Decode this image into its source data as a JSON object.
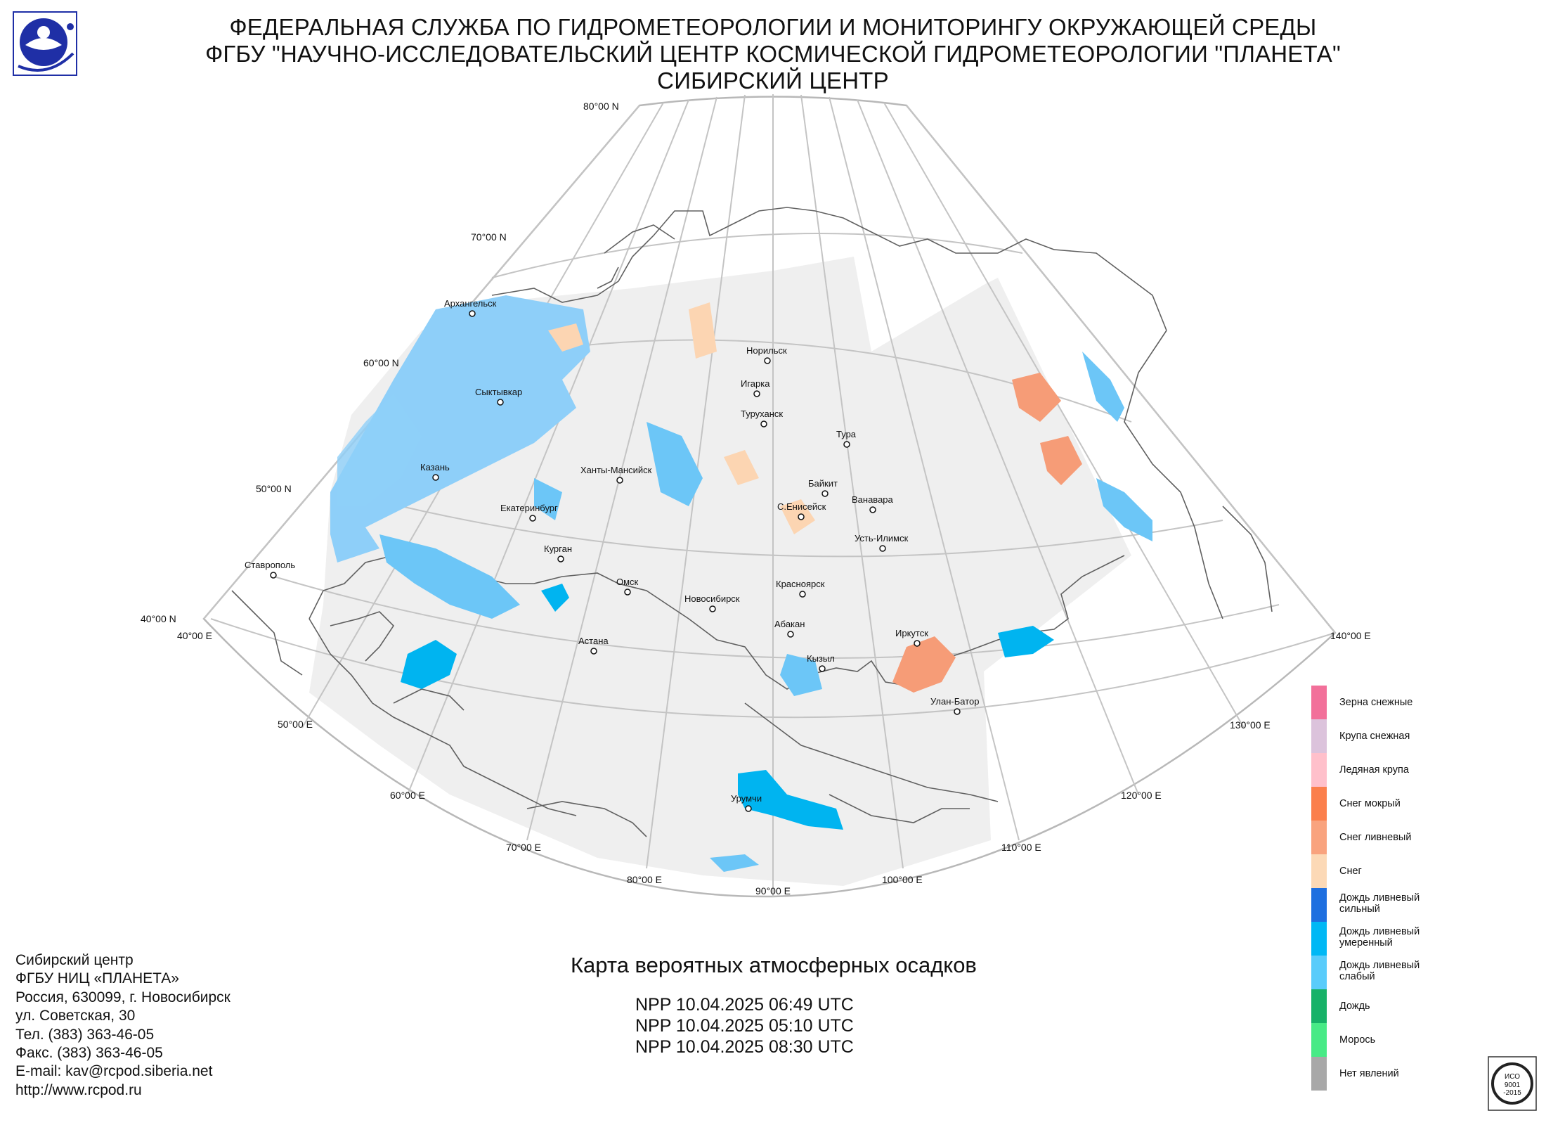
{
  "header": {
    "line1": "ФЕДЕРАЛЬНАЯ СЛУЖБА ПО ГИДРОМЕТЕОРОЛОГИИ И МОНИТОРИНГУ ОКРУЖАЮЩЕЙ СРЕДЫ",
    "line2": "ФГБУ \"НАУЧНО-ИССЛЕДОВАТЕЛЬСКИЙ ЦЕНТР КОСМИЧЕСКОЙ ГИДРОМЕТЕОРОЛОГИИ \"ПЛАНЕТА\"",
    "line3": "СИБИРСКИЙ ЦЕНТР"
  },
  "grid_labels": {
    "lat80": "80°00 N",
    "lat70": "70°00 N",
    "lat60": "60°00 N",
    "lat50": "50°00 N",
    "lat40": "40°00 N",
    "lon40": "40°00 E",
    "lon50": "50°00 E",
    "lon60": "60°00 E",
    "lon70": "70°00 E",
    "lon80": "80°00 E",
    "lon90": "90°00 E",
    "lon100": "100°00 E",
    "lon110": "110°00 E",
    "lon120": "120°00 E",
    "lon130": "130°00 E",
    "lon140": "140°00 E"
  },
  "cities": {
    "arkhangelsk": "Архангельск",
    "syktyvkar": "Сыктывкар",
    "kazan": "Казань",
    "ekaterinburg": "Екатеринбург",
    "kurgan": "Курган",
    "stavropol": "Ставрополь",
    "khanty": "Ханты-Мансийск",
    "omsk": "Омск",
    "novosibirsk": "Новосибирск",
    "astana": "Астана",
    "norilsk": "Норильск",
    "igarka": "Игарка",
    "turukhansk": "Туруханск",
    "tura": "Тура",
    "baikit": "Байкит",
    "vanavara": "Ванавара",
    "s_eniseysk": "С.Енисейск",
    "ust_ilimsk": "Усть-Илимск",
    "krasnoyarsk": "Красноярск",
    "abakan": "Абакан",
    "kyzyl": "Кызыл",
    "irkutsk": "Иркутск",
    "ulan_bator": "Улан-Батор",
    "urumqi": "Урумчи"
  },
  "legend": [
    {
      "label": "Зерна снежные",
      "color": "#f2709a"
    },
    {
      "label": "Крупа снежная",
      "color": "#dcc3dc"
    },
    {
      "label": "Ледяная крупа",
      "color": "#ffc0cb"
    },
    {
      "label": "Снег мокрый",
      "color": "#fb7f4c"
    },
    {
      "label": "Снег ливневый",
      "color": "#f9a37e"
    },
    {
      "label": "Снег",
      "color": "#fcd9b6"
    },
    {
      "label": "Дождь ливневый\nсильный",
      "color": "#1e6fe0"
    },
    {
      "label": "Дождь ливневый\nумеренный",
      "color": "#00b8f5"
    },
    {
      "label": "Дождь ливневый\nслабый",
      "color": "#59ccfb"
    },
    {
      "label": "Дождь",
      "color": "#17b268"
    },
    {
      "label": "Морось",
      "color": "#48ea86"
    },
    {
      "label": "Нет явлений",
      "color": "#a8a8a8"
    }
  ],
  "contact": {
    "line1": "Сибирский центр",
    "line2": "ФГБУ НИЦ «ПЛАНЕТА»",
    "line3": "Россия, 630099, г. Новосибирск",
    "line4": "ул. Советская, 30",
    "line5": "Тел. (383) 363-46-05",
    "line6": "Факс. (383) 363-46-05",
    "line7": "E-mail: kav@rcpod.siberia.net",
    "line8": "http://www.rcpod.ru"
  },
  "map_title": "Карта вероятных атмосферных осадков",
  "passes": [
    "NPP 10.04.2025  06:49 UTC",
    "NPP 10.04.2025  05:10 UTC",
    "NPP 10.04.2025  08:30 UTC"
  ],
  "cert": {
    "line1": "ИСО",
    "line2": "9001",
    "line3": "-2015"
  }
}
